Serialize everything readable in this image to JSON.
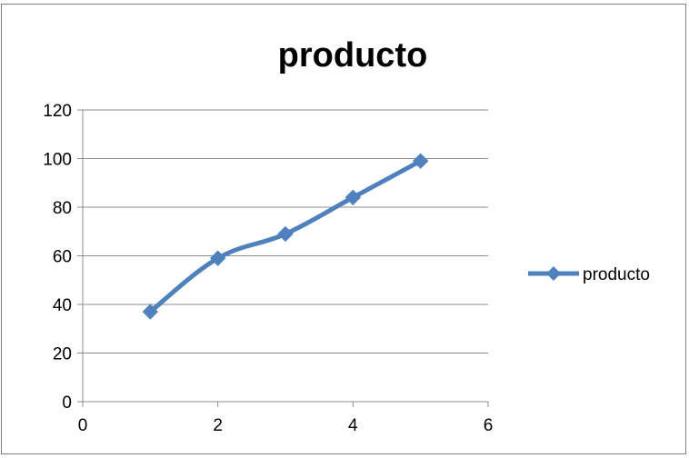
{
  "chart_data": {
    "type": "scatter",
    "title": "producto",
    "xlabel": "",
    "ylabel": "",
    "xlim": [
      0,
      6
    ],
    "ylim": [
      0,
      120
    ],
    "xticks": [
      0,
      2,
      4,
      6
    ],
    "yticks": [
      0,
      20,
      40,
      60,
      80,
      100,
      120
    ],
    "grid": true,
    "smooth_lines": true,
    "marker": "diamond",
    "legend_position": "right",
    "series": [
      {
        "name": "producto",
        "color": "#4f81bd",
        "x": [
          1,
          2,
          3,
          4,
          5
        ],
        "y": [
          37,
          59,
          69,
          84,
          99
        ]
      }
    ]
  }
}
